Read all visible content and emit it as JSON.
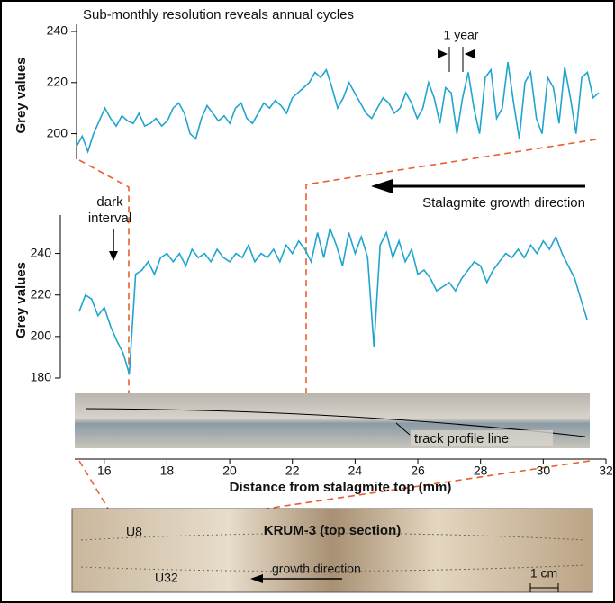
{
  "chart_data": [
    {
      "type": "line",
      "title": "Sub-monthly resolution reveals annual cycles",
      "y_label": "Grey values",
      "annotation": "1 year",
      "x": [
        22.4,
        22.5,
        22.6,
        22.7,
        22.8,
        22.9,
        23.0,
        23.1,
        23.2,
        23.3,
        23.4,
        23.5,
        23.6,
        23.7,
        23.8,
        23.9,
        24.0,
        24.1,
        24.2,
        24.3,
        24.4,
        24.5,
        24.6,
        24.7,
        24.8,
        24.9,
        25.0,
        25.1,
        25.2,
        25.3,
        25.4,
        25.5,
        25.6,
        25.7,
        25.8,
        25.9,
        26.0,
        26.1,
        26.2,
        26.3,
        26.4,
        26.5,
        26.6,
        26.7,
        26.8,
        26.9,
        27.0,
        27.1,
        27.2,
        27.3,
        27.4,
        27.5,
        27.6,
        27.7,
        27.8,
        27.9,
        28.0,
        28.1,
        28.2,
        28.3,
        28.4,
        28.5,
        28.6,
        28.7,
        28.8,
        28.9,
        29.0,
        29.1,
        29.2,
        29.3,
        29.4,
        29.5,
        29.6,
        29.7,
        29.8,
        29.9,
        30.0,
        30.1,
        30.2,
        30.3,
        30.4,
        30.5,
        30.6,
        30.7,
        30.8,
        30.9,
        31.0,
        31.1,
        31.2,
        31.3,
        31.4,
        31.5,
        31.6
      ],
      "series": [
        {
          "color": "#1fa5cf",
          "values": [
            195,
            199,
            193,
            200,
            205,
            210,
            206,
            203,
            207,
            205,
            204,
            208,
            203,
            204,
            206,
            203,
            205,
            210,
            212,
            208,
            200,
            198,
            206,
            211,
            208,
            205,
            207,
            204,
            210,
            212,
            206,
            204,
            208,
            212,
            210,
            213,
            211,
            208,
            214,
            216,
            218,
            220,
            224,
            222,
            225,
            218,
            210,
            214,
            220,
            216,
            212,
            208,
            206,
            210,
            214,
            212,
            208,
            210,
            216,
            212,
            206,
            210,
            220,
            214,
            204,
            218,
            216,
            200,
            214,
            224,
            210,
            200,
            222,
            225,
            206,
            210,
            228,
            212,
            198,
            220,
            224,
            206,
            200,
            222,
            218,
            204,
            226,
            214,
            200,
            222,
            224,
            214,
            216
          ]
        }
      ],
      "xlim": [
        22.4,
        31.6
      ],
      "ylim": [
        190,
        240
      ],
      "yticks": [
        200,
        220,
        240
      ]
    },
    {
      "type": "line",
      "y_label": "Grey values",
      "x_label": "Distance from stalagmite top (mm)",
      "annotations": [
        "dark",
        "interval",
        "Stalagmite growth direction"
      ],
      "x": [
        15.2,
        15.4,
        15.6,
        15.8,
        16.0,
        16.2,
        16.4,
        16.6,
        16.8,
        17.0,
        17.2,
        17.4,
        17.6,
        17.8,
        18.0,
        18.2,
        18.4,
        18.6,
        18.8,
        19.0,
        19.2,
        19.4,
        19.6,
        19.8,
        20.0,
        20.2,
        20.4,
        20.6,
        20.8,
        21.0,
        21.2,
        21.4,
        21.6,
        21.8,
        22.0,
        22.2,
        22.4,
        22.6,
        22.8,
        23.0,
        23.2,
        23.4,
        23.6,
        23.8,
        24.0,
        24.2,
        24.4,
        24.6,
        24.8,
        25.0,
        25.2,
        25.4,
        25.6,
        25.8,
        26.0,
        26.2,
        26.4,
        26.6,
        26.8,
        27.0,
        27.2,
        27.4,
        27.6,
        27.8,
        28.0,
        28.2,
        28.4,
        28.6,
        28.8,
        29.0,
        29.2,
        29.4,
        29.6,
        29.8,
        30.0,
        30.2,
        30.4,
        30.6,
        30.8,
        31.0,
        31.2,
        31.4
      ],
      "series": [
        {
          "color": "#1fa5cf",
          "values": [
            212,
            220,
            218,
            210,
            214,
            205,
            198,
            192,
            182,
            230,
            232,
            236,
            230,
            238,
            240,
            236,
            240,
            234,
            242,
            238,
            240,
            236,
            242,
            238,
            236,
            240,
            238,
            244,
            236,
            240,
            238,
            242,
            236,
            244,
            240,
            246,
            242,
            236,
            250,
            238,
            252,
            244,
            234,
            250,
            240,
            248,
            238,
            195,
            244,
            250,
            238,
            246,
            236,
            242,
            230,
            232,
            228,
            222,
            224,
            226,
            222,
            228,
            232,
            236,
            234,
            226,
            232,
            236,
            240,
            238,
            242,
            238,
            244,
            240,
            246,
            242,
            248,
            240,
            234,
            228,
            218,
            208
          ]
        }
      ],
      "xlim": [
        14.6,
        32
      ],
      "ylim": [
        180,
        255
      ],
      "yticks": [
        180,
        200,
        220,
        240
      ],
      "xticks": [
        16,
        18,
        20,
        22,
        24,
        26,
        28,
        30,
        32
      ]
    }
  ],
  "profile_strip": {
    "label": "track profile line"
  },
  "section": {
    "title": "KRUM-3 (top section)",
    "labels": [
      "U8",
      "U32"
    ],
    "arrow_label": "growth direction",
    "scale": "1 cm"
  }
}
